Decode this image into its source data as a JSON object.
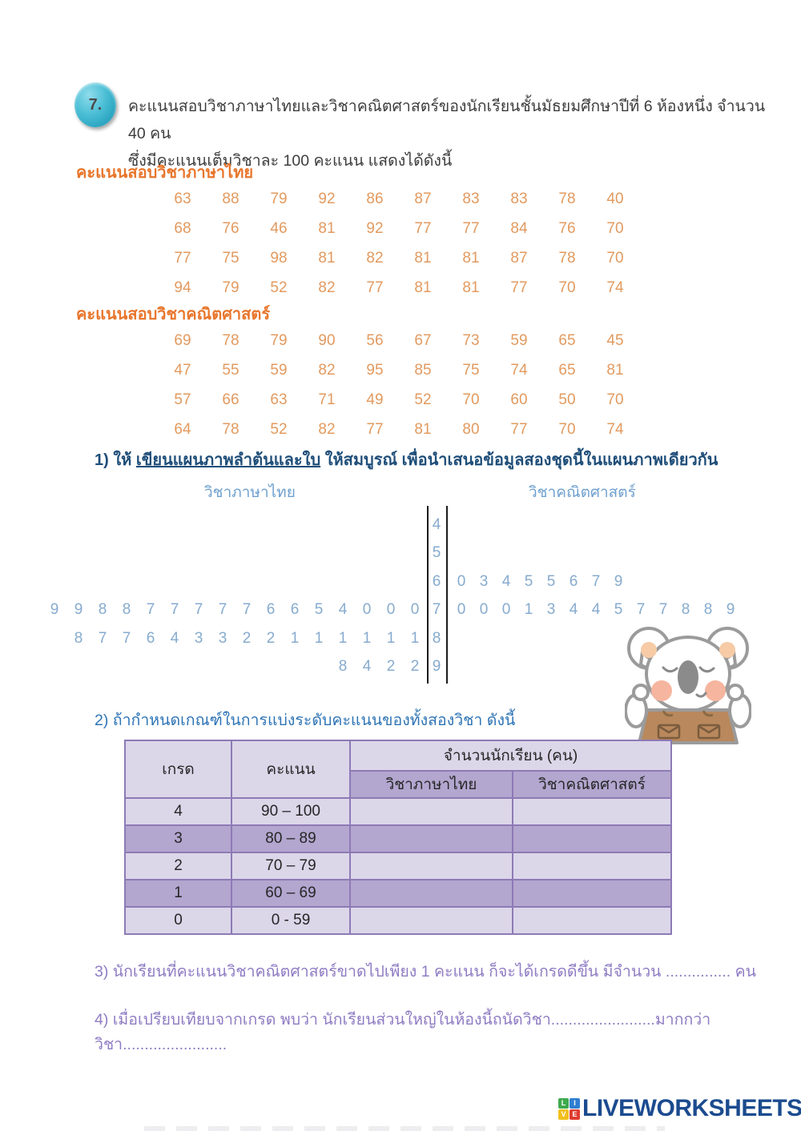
{
  "page": {
    "question_number": "7.",
    "intro_line1": "คะแนนสอบวิชาภาษาไทยและวิชาคณิตศาสตร์ของนักเรียนชั้นมัธยมศึกษาปีที่ 6 ห้องหนึ่ง จำนวน 40 คน",
    "intro_line2": "ซึ่งมีคะแนนเต็มวิชาละ 100 คะแนน   แสดงได้ดังนี้"
  },
  "thai_scores": {
    "heading": "คะแนนสอบวิชาภาษาไทย",
    "rows": [
      [
        63,
        88,
        79,
        92,
        86,
        87,
        83,
        83,
        78,
        40
      ],
      [
        68,
        76,
        46,
        81,
        92,
        77,
        77,
        84,
        76,
        70
      ],
      [
        77,
        75,
        98,
        81,
        82,
        81,
        81,
        87,
        78,
        70
      ],
      [
        94,
        79,
        52,
        82,
        77,
        81,
        81,
        77,
        70,
        74
      ]
    ]
  },
  "math_scores": {
    "heading": "คะแนนสอบวิชาคณิตศาสตร์",
    "rows": [
      [
        69,
        78,
        79,
        90,
        56,
        67,
        73,
        59,
        65,
        45
      ],
      [
        47,
        55,
        59,
        82,
        95,
        85,
        75,
        74,
        65,
        81
      ],
      [
        57,
        66,
        63,
        71,
        49,
        52,
        70,
        60,
        50,
        70
      ],
      [
        64,
        78,
        52,
        82,
        77,
        81,
        80,
        77,
        70,
        74
      ]
    ]
  },
  "question1": {
    "prefix": "1) ให้ ",
    "underlined": "เขียนแผนภาพลำต้นและใบ",
    "suffix": " ให้สมบูรณ์ เพื่อนำเสนอข้อมูลสองชุดนี้ในแผนภาพเดียวกัน",
    "left_label": "วิชาภาษาไทย",
    "right_label": "วิชาคณิตศาสตร์"
  },
  "stem_leaf": {
    "rows": [
      {
        "stem": "4",
        "left": [],
        "right": []
      },
      {
        "stem": "5",
        "left": [],
        "right": []
      },
      {
        "stem": "6",
        "left": [],
        "right": [
          "0",
          "3",
          "4",
          "5",
          "5",
          "6",
          "7",
          "9"
        ]
      },
      {
        "stem": "7",
        "left": [
          "9",
          "9",
          "8",
          "8",
          "7",
          "7",
          "7",
          "7",
          "7",
          "6",
          "6",
          "5",
          "4",
          "0",
          "0",
          "0"
        ],
        "right": [
          "0",
          "0",
          "0",
          "1",
          "3",
          "4",
          "4",
          "5",
          "7",
          "7",
          "8",
          "8",
          "9"
        ]
      },
      {
        "stem": "8",
        "left": [
          "8",
          "7",
          "7",
          "6",
          "4",
          "3",
          "3",
          "2",
          "2",
          "1",
          "1",
          "1",
          "1",
          "1",
          "1"
        ],
        "right": []
      },
      {
        "stem": "9",
        "left": [
          "8",
          "4",
          "2",
          "2"
        ],
        "right": []
      }
    ]
  },
  "question2": {
    "text": "2) ถ้ากำหนดเกณฑ์ในการแบ่งระดับคะแนนของทั้งสองวิชา ดังนี้"
  },
  "grade_table": {
    "col_grade": "เกรด",
    "col_score": "คะแนน",
    "col_count": "จำนวนนักเรียน (คน)",
    "col_thai": "วิชาภาษาไทย",
    "col_math": "วิชาคณิตศาสตร์",
    "rows": [
      {
        "grade": "4",
        "range": "90 – 100",
        "thai": "",
        "math": ""
      },
      {
        "grade": "3",
        "range": "80 – 89",
        "thai": "",
        "math": ""
      },
      {
        "grade": "2",
        "range": "70 – 79",
        "thai": "",
        "math": ""
      },
      {
        "grade": "1",
        "range": "60 – 69",
        "thai": "",
        "math": ""
      },
      {
        "grade": "0",
        "range": "0 - 59",
        "thai": "",
        "math": ""
      }
    ]
  },
  "question3": {
    "before_blank": "3) นักเรียนที่คะแนนวิชาคณิตศาสตร์ขาดไปเพียง 1 คะแนน ก็จะได้เกรดดีขึ้น   มีจำนวน ",
    "blank": "...............",
    "after_blank": " คน"
  },
  "question4": {
    "part1": "4) เมื่อเปรียบเทียบจากเกรด พบว่า นักเรียนส่วนใหญ่ในห้องนี้ถนัดวิชา",
    "blank1": "........................",
    "part2": "มากกว่าวิชา",
    "blank2": "........................"
  },
  "footer": {
    "logo_text": "LIVEWORKSHEETS",
    "logo_squares": [
      {
        "letter": "L",
        "color": "#3faa4e"
      },
      {
        "letter": "I",
        "color": "#2f7fd1"
      },
      {
        "letter": "V",
        "color": "#f2c01d"
      },
      {
        "letter": "E",
        "color": "#e03c31"
      }
    ]
  },
  "colors": {
    "orange_heading": "#e8762c",
    "orange_scores": "#e29a5f",
    "navy_question": "#1f4e79",
    "blue_question2": "#2e74b5",
    "stemleaf_blue": "#87abce",
    "purple_question": "#8e7cc3",
    "table_light": "#dcd6e9",
    "table_dark": "#b3a6cf",
    "table_border": "#8d7ab5",
    "bubble_cyan": "#2ba4c0",
    "logo_navy": "#1b4b8f"
  }
}
